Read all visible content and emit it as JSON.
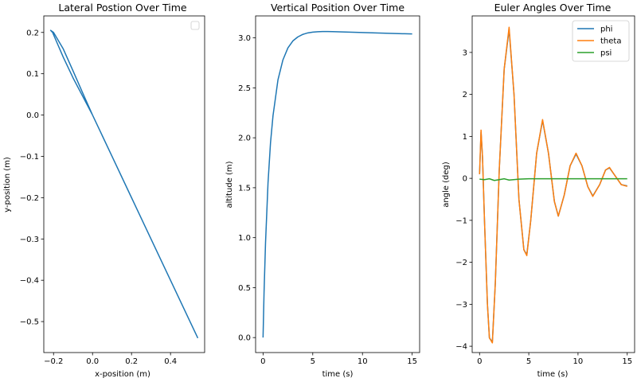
{
  "chart_data": [
    {
      "type": "line",
      "title": "Lateral Postion Over Time",
      "xlabel": "x-position (m)",
      "ylabel": "y-position (m)",
      "xlim": [
        -0.25,
        0.575
      ],
      "ylim": [
        -0.575,
        0.24
      ],
      "xticks": [
        -0.2,
        0.0,
        0.2,
        0.4
      ],
      "xtick_labels": [
        "−0.2",
        "0.0",
        "0.2",
        "0.4"
      ],
      "yticks": [
        0.2,
        0.1,
        0.0,
        -0.1,
        -0.2,
        -0.3,
        -0.4,
        -0.5
      ],
      "ytick_labels": [
        "0.2",
        "0.1",
        "0.0",
        "−0.1",
        "−0.2",
        "−0.3",
        "−0.4",
        "−0.5"
      ],
      "legend": "empty box, top-right",
      "series": [
        {
          "color": "#1f77b4",
          "x": [
            0.0,
            -0.05,
            -0.1,
            -0.15,
            -0.2,
            -0.215,
            -0.205,
            -0.15,
            -0.1,
            -0.05,
            0.0,
            0.1,
            0.2,
            0.3,
            0.4,
            0.5,
            0.535,
            0.54
          ],
          "y": [
            0.0,
            0.053,
            0.107,
            0.16,
            0.2,
            0.205,
            0.2,
            0.14,
            0.09,
            0.045,
            0.0,
            -0.1,
            -0.2,
            -0.3,
            -0.4,
            -0.5,
            -0.535,
            -0.54
          ]
        }
      ]
    },
    {
      "type": "line",
      "title": "Vertical Position Over Time",
      "xlabel": "time (s)",
      "ylabel": "altitude (m)",
      "xlim": [
        -0.75,
        15.75
      ],
      "ylim": [
        -0.15,
        3.22
      ],
      "xticks": [
        0,
        5,
        10,
        15
      ],
      "xtick_labels": [
        "0",
        "5",
        "10",
        "15"
      ],
      "yticks": [
        0.0,
        0.5,
        1.0,
        1.5,
        2.0,
        2.5,
        3.0
      ],
      "ytick_labels": [
        "0.0",
        "0.5",
        "1.0",
        "1.5",
        "2.0",
        "2.5",
        "3.0"
      ],
      "series": [
        {
          "color": "#1f77b4",
          "x": [
            0,
            0.1,
            0.25,
            0.5,
            0.75,
            1.0,
            1.5,
            2.0,
            2.5,
            3.0,
            3.5,
            4.0,
            4.5,
            5.0,
            5.5,
            6.0,
            6.5,
            7.0,
            8.0,
            9.0,
            10.0,
            11.0,
            12.0,
            13.0,
            14.0,
            15.0
          ],
          "y": [
            0.0,
            0.45,
            0.95,
            1.55,
            1.95,
            2.22,
            2.58,
            2.78,
            2.9,
            2.97,
            3.01,
            3.035,
            3.05,
            3.058,
            3.062,
            3.064,
            3.064,
            3.063,
            3.06,
            3.057,
            3.054,
            3.051,
            3.048,
            3.045,
            3.042,
            3.04
          ]
        }
      ]
    },
    {
      "type": "line",
      "title": "Euler Angles Over Time",
      "xlabel": "time (s)",
      "ylabel": "angle (deg)",
      "xlim": [
        -0.75,
        15.75
      ],
      "ylim": [
        -4.15,
        3.87
      ],
      "xticks": [
        0,
        5,
        10,
        15
      ],
      "xtick_labels": [
        "0",
        "5",
        "10",
        "15"
      ],
      "yticks": [
        3,
        2,
        1,
        0,
        -1,
        -2,
        -3,
        -4
      ],
      "ytick_labels": [
        "3",
        "2",
        "1",
        "0",
        "−1",
        "−2",
        "−3",
        "−4"
      ],
      "legend": "top-right",
      "series": [
        {
          "name": "phi",
          "color": "#1f77b4",
          "x": [
            0,
            0.15,
            0.3,
            0.5,
            0.8,
            1.0,
            1.3,
            1.6,
            2.0,
            2.5,
            3.0,
            3.5,
            4.0,
            4.5,
            4.8,
            5.2,
            5.8,
            6.4,
            7.0,
            7.6,
            8.0,
            8.6,
            9.2,
            9.8,
            10.4,
            11.0,
            11.5,
            12.2,
            12.8,
            13.2,
            13.8,
            14.4,
            15.0
          ],
          "y": [
            0.1,
            1.1,
            0.5,
            -1.0,
            -3.0,
            -3.8,
            -3.9,
            -2.5,
            0.2,
            2.6,
            3.55,
            2.0,
            -0.5,
            -1.7,
            -1.82,
            -1.0,
            0.6,
            1.38,
            0.6,
            -0.55,
            -0.9,
            -0.4,
            0.3,
            0.58,
            0.3,
            -0.2,
            -0.42,
            -0.15,
            0.2,
            0.25,
            0.05,
            -0.15,
            -0.18
          ]
        },
        {
          "name": "theta",
          "color": "#ff7f0e",
          "x": [
            0,
            0.15,
            0.3,
            0.5,
            0.8,
            1.0,
            1.3,
            1.6,
            2.0,
            2.5,
            3.0,
            3.5,
            4.0,
            4.5,
            4.8,
            5.2,
            5.8,
            6.4,
            7.0,
            7.6,
            8.0,
            8.6,
            9.2,
            9.8,
            10.4,
            11.0,
            11.5,
            12.2,
            12.8,
            13.2,
            13.8,
            14.4,
            15.0
          ],
          "y": [
            0.1,
            1.15,
            0.5,
            -1.0,
            -3.0,
            -3.8,
            -3.92,
            -2.5,
            0.2,
            2.6,
            3.6,
            2.0,
            -0.5,
            -1.7,
            -1.84,
            -1.0,
            0.6,
            1.4,
            0.6,
            -0.55,
            -0.9,
            -0.4,
            0.3,
            0.6,
            0.3,
            -0.2,
            -0.43,
            -0.15,
            0.2,
            0.26,
            0.05,
            -0.15,
            -0.19
          ]
        },
        {
          "name": "psi",
          "color": "#2ca02c",
          "x": [
            0,
            0.5,
            1.0,
            1.5,
            2.0,
            2.5,
            3.0,
            4.0,
            5.0,
            6.0,
            8.0,
            10.0,
            12.0,
            15.0
          ],
          "y": [
            -0.02,
            -0.03,
            -0.01,
            -0.05,
            -0.03,
            -0.01,
            -0.04,
            -0.02,
            -0.01,
            -0.01,
            -0.01,
            -0.01,
            -0.01,
            -0.01
          ]
        }
      ]
    }
  ]
}
